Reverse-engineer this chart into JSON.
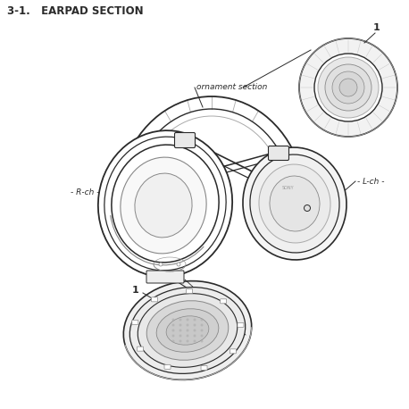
{
  "title": "3-1.   EARPAD SECTION",
  "bg_color": "#ffffff",
  "line_color": "#2a2a2a",
  "gray1": "#aaaaaa",
  "gray2": "#888888",
  "gray3": "#cccccc",
  "label_ornament": "ornament section",
  "label_rch": "- R-ch -",
  "label_lch": "- L-ch -",
  "label_1": "1",
  "font_size_title": 8.5,
  "font_size_label": 6.5,
  "font_size_number": 8
}
